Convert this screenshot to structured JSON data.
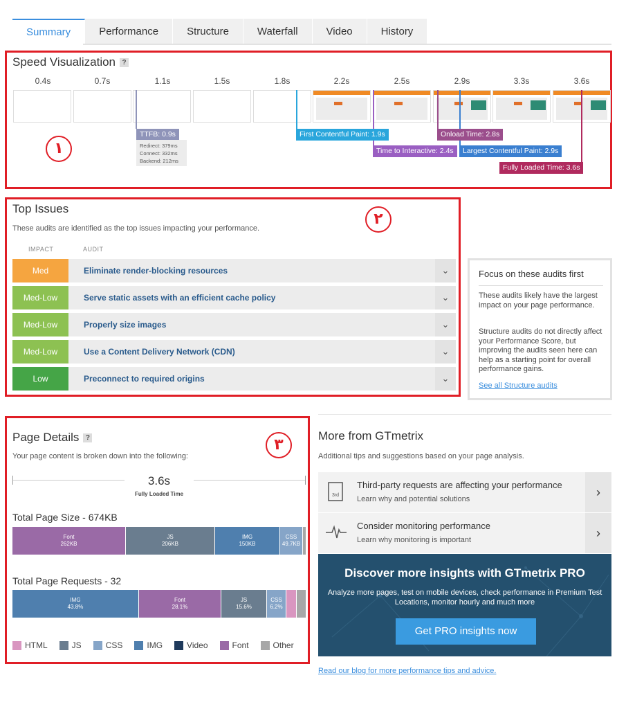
{
  "tabs": [
    "Summary",
    "Performance",
    "Structure",
    "Waterfall",
    "Video",
    "History"
  ],
  "speed": {
    "title": "Speed Visualization",
    "help": "?",
    "marker": "١",
    "times": [
      "0.4s",
      "0.7s",
      "1.1s",
      "1.5s",
      "1.8s",
      "2.2s",
      "2.5s",
      "2.9s",
      "3.3s",
      "3.6s"
    ],
    "ttfb": {
      "label": "TTFB: 0.9s",
      "redirect": "Redirect: 379ms",
      "connect": "Connect: 332ms",
      "backend": "Backend: 212ms"
    },
    "milestones": [
      {
        "label": "First Contentful Paint: 1.9s",
        "color": "#2aa6dc"
      },
      {
        "label": "Time to Interactive: 2.4s",
        "color": "#9a5fc2"
      },
      {
        "label": "Onload Time: 2.8s",
        "color": "#9b4e8c"
      },
      {
        "label": "Largest Contentful Paint: 2.9s",
        "color": "#3a7fd0"
      },
      {
        "label": "Fully Loaded Time: 3.6s",
        "color": "#b02a5e"
      }
    ],
    "ttfb_color": "#8f94b9"
  },
  "issues": {
    "title": "Top Issues",
    "subtitle": "These audits are identified as the top issues impacting your performance.",
    "marker": "٢",
    "col_impact": "IMPACT",
    "col_audit": "AUDIT",
    "rows": [
      {
        "impact": "Med",
        "audit": "Eliminate render-blocking resources",
        "color": "#f5a540"
      },
      {
        "impact": "Med-Low",
        "audit": "Serve static assets with an efficient cache policy",
        "color": "#8dc152"
      },
      {
        "impact": "Med-Low",
        "audit": "Properly size images",
        "color": "#8dc152"
      },
      {
        "impact": "Med-Low",
        "audit": "Use a Content Delivery Network (CDN)",
        "color": "#8dc152"
      },
      {
        "impact": "Low",
        "audit": "Preconnect to required origins",
        "color": "#45a547"
      }
    ]
  },
  "focus": {
    "title": "Focus on these audits first",
    "p1": "These audits likely have the largest impact on your page performance.",
    "p2": "Structure audits do not directly affect your Performance Score, but improving the audits seen here can help as a starting point for overall performance gains.",
    "link": "See all Structure audits"
  },
  "details": {
    "title": "Page Details",
    "help": "?",
    "marker": "٣",
    "subtitle": "Your page content is broken down into the following:",
    "fully_loaded_value": "3.6s",
    "fully_loaded_label": "Fully Loaded Time",
    "size_title": "Total Page Size - 674KB",
    "size_segments": [
      {
        "name": "Font",
        "value": "262KB",
        "color": "#9a6aa6"
      },
      {
        "name": "JS",
        "value": "206KB",
        "color": "#6a7d8f"
      },
      {
        "name": "IMG",
        "value": "150KB",
        "color": "#4f7fae"
      },
      {
        "name": "CSS",
        "value": "49.7KB",
        "color": "#86a5c8"
      }
    ],
    "requests_title": "Total Page Requests - 32",
    "request_segments": [
      {
        "name": "IMG",
        "value": "43.8%",
        "color": "#4f7fae"
      },
      {
        "name": "Font",
        "value": "28.1%",
        "color": "#9a6aa6"
      },
      {
        "name": "JS",
        "value": "15.6%",
        "color": "#6a7d8f"
      },
      {
        "name": "CSS",
        "value": "6.2%",
        "color": "#86a5c8"
      }
    ],
    "legend": [
      {
        "name": "HTML",
        "color": "#d996c0"
      },
      {
        "name": "JS",
        "color": "#6a7d8f"
      },
      {
        "name": "CSS",
        "color": "#86a5c8"
      },
      {
        "name": "IMG",
        "color": "#4f7fae"
      },
      {
        "name": "Video",
        "color": "#1f3a5c"
      },
      {
        "name": "Font",
        "color": "#9a6aa6"
      },
      {
        "name": "Other",
        "color": "#a7a7a7"
      }
    ]
  },
  "more": {
    "title": "More from GTmetrix",
    "subtitle": "Additional tips and suggestions based on your page analysis.",
    "cards": [
      {
        "title": "Third-party requests are affecting your performance",
        "sub": "Learn why and potential solutions",
        "icon_text": "3rd"
      },
      {
        "title": "Consider monitoring performance",
        "sub": "Learn why monitoring is important"
      }
    ],
    "pro_title": "Discover more insights with GTmetrix PRO",
    "pro_desc": "Analyze more pages, test on mobile devices, check performance in Premium Test Locations, monitor hourly and much more",
    "pro_button": "Get PRO insights now",
    "blog_link": "Read our blog for more performance tips and advice."
  }
}
